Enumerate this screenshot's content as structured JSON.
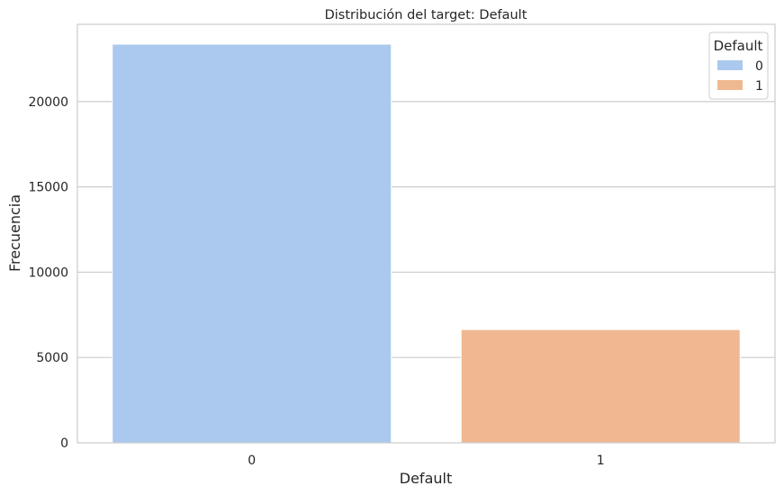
{
  "chart_data": {
    "type": "bar",
    "title": "Distribución del target: Default",
    "xlabel": "Default",
    "ylabel": "Frecuencia",
    "categories": [
      "0",
      "1"
    ],
    "values": [
      23364,
      6636
    ],
    "colors": [
      "#abc9ee",
      "#f0b890"
    ],
    "ylim": [
      0,
      24528
    ],
    "yticks": [
      0,
      5000,
      10000,
      15000,
      20000
    ],
    "grid": "horizontal",
    "legend": {
      "title": "Default",
      "placement": "top-right",
      "entries": [
        "0",
        "1"
      ]
    }
  }
}
